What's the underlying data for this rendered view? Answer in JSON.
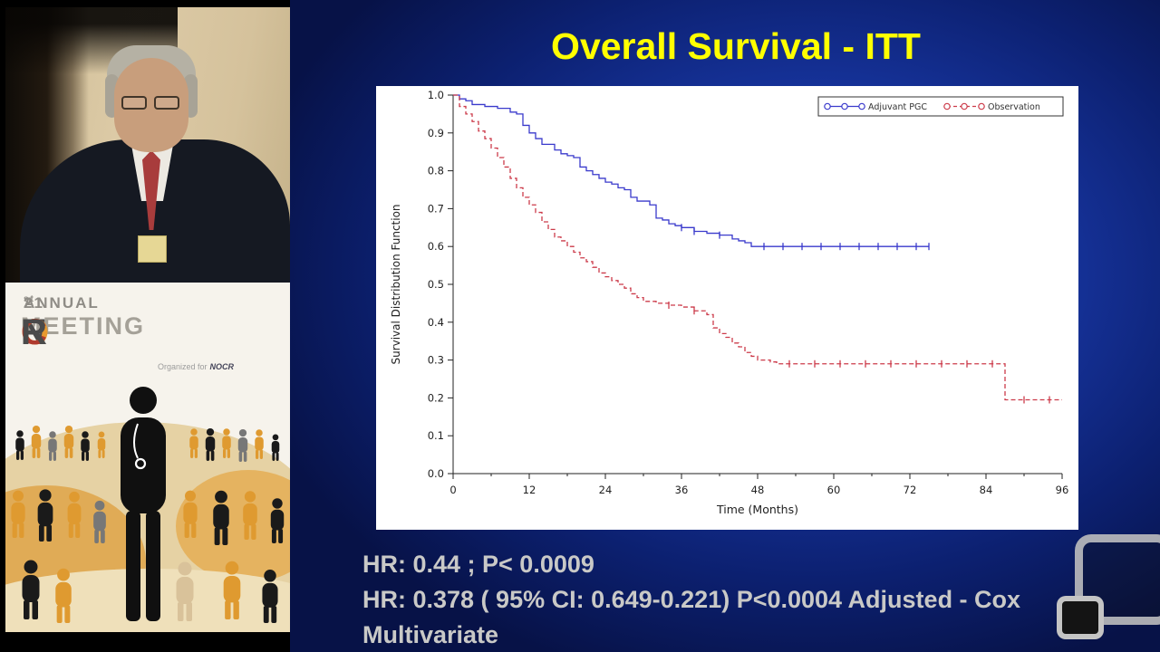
{
  "slide": {
    "title": "Overall Survival - ITT",
    "title_color": "#ffff00",
    "stats_line1": "HR: 0.44 ; P< 0.0009",
    "stats_line2": "HR: 0.378 ( 95% CI: 0.649-0.221)  P<0.0004 Adjusted - Cox Multivariate",
    "stats_color": "#c9c9c7"
  },
  "branding": {
    "annual_number": "21",
    "annual_sup": "st",
    "annual_word": " ANNUAL",
    "logo": [
      {
        "char": "N",
        "color": "#4a4a4a"
      },
      {
        "char": "O",
        "color": "#e8992f"
      },
      {
        "char": "C",
        "color": "#b03a2e"
      },
      {
        "char": "R",
        "color": "#4a4a4a"
      }
    ],
    "meeting_word": "MEETING",
    "organized_for": "Organized for",
    "organizer_logo": "NOCR"
  },
  "chart_data": {
    "type": "line",
    "subtype": "kaplan-meier-step",
    "title": "",
    "xlabel": "Time (Months)",
    "ylabel": "Survival Distribution Function",
    "xlim": [
      0,
      96
    ],
    "ylim": [
      0.0,
      1.0
    ],
    "xticks": [
      0,
      12,
      24,
      36,
      48,
      60,
      72,
      84,
      96
    ],
    "yticks": [
      0.0,
      0.1,
      0.2,
      0.3,
      0.4,
      0.5,
      0.6,
      0.7,
      0.8,
      0.9,
      1.0
    ],
    "grid": false,
    "legend_position": "top-right-inside",
    "series": [
      {
        "name": "Adjuvant PGC",
        "color": "#3a3acc",
        "line_style": "solid",
        "points": [
          [
            0,
            1.0
          ],
          [
            1,
            0.99
          ],
          [
            2,
            0.985
          ],
          [
            3,
            0.975
          ],
          [
            5,
            0.97
          ],
          [
            7,
            0.965
          ],
          [
            9,
            0.955
          ],
          [
            10,
            0.95
          ],
          [
            11,
            0.92
          ],
          [
            12,
            0.9
          ],
          [
            13,
            0.885
          ],
          [
            14,
            0.87
          ],
          [
            16,
            0.855
          ],
          [
            17,
            0.845
          ],
          [
            18,
            0.84
          ],
          [
            19,
            0.835
          ],
          [
            20,
            0.81
          ],
          [
            21,
            0.8
          ],
          [
            22,
            0.79
          ],
          [
            23,
            0.78
          ],
          [
            24,
            0.77
          ],
          [
            25,
            0.765
          ],
          [
            26,
            0.755
          ],
          [
            27,
            0.75
          ],
          [
            28,
            0.73
          ],
          [
            29,
            0.72
          ],
          [
            31,
            0.71
          ],
          [
            32,
            0.675
          ],
          [
            33,
            0.67
          ],
          [
            34,
            0.66
          ],
          [
            35,
            0.655
          ],
          [
            36,
            0.65
          ],
          [
            38,
            0.64
          ],
          [
            40,
            0.635
          ],
          [
            42,
            0.63
          ],
          [
            44,
            0.62
          ],
          [
            45,
            0.615
          ],
          [
            46,
            0.61
          ],
          [
            47,
            0.6
          ],
          [
            75,
            0.6
          ]
        ]
      },
      {
        "name": "Observation",
        "color": "#cc3b4a",
        "line_style": "dashed",
        "points": [
          [
            0,
            1.0
          ],
          [
            1,
            0.97
          ],
          [
            2,
            0.95
          ],
          [
            3,
            0.93
          ],
          [
            4,
            0.905
          ],
          [
            5,
            0.885
          ],
          [
            6,
            0.86
          ],
          [
            7,
            0.835
          ],
          [
            8,
            0.81
          ],
          [
            9,
            0.78
          ],
          [
            10,
            0.755
          ],
          [
            11,
            0.73
          ],
          [
            12,
            0.71
          ],
          [
            13,
            0.69
          ],
          [
            14,
            0.665
          ],
          [
            15,
            0.645
          ],
          [
            16,
            0.625
          ],
          [
            17,
            0.615
          ],
          [
            18,
            0.6
          ],
          [
            19,
            0.585
          ],
          [
            20,
            0.57
          ],
          [
            21,
            0.56
          ],
          [
            22,
            0.545
          ],
          [
            23,
            0.53
          ],
          [
            24,
            0.52
          ],
          [
            25,
            0.51
          ],
          [
            26,
            0.5
          ],
          [
            27,
            0.49
          ],
          [
            28,
            0.475
          ],
          [
            29,
            0.465
          ],
          [
            30,
            0.455
          ],
          [
            32,
            0.45
          ],
          [
            34,
            0.445
          ],
          [
            36,
            0.44
          ],
          [
            38,
            0.43
          ],
          [
            40,
            0.42
          ],
          [
            41,
            0.385
          ],
          [
            42,
            0.37
          ],
          [
            43,
            0.36
          ],
          [
            44,
            0.345
          ],
          [
            45,
            0.335
          ],
          [
            46,
            0.32
          ],
          [
            47,
            0.31
          ],
          [
            48,
            0.3
          ],
          [
            50,
            0.295
          ],
          [
            51,
            0.29
          ],
          [
            86,
            0.29
          ],
          [
            87,
            0.195
          ],
          [
            96,
            0.195
          ]
        ]
      }
    ],
    "censor_marks": [
      {
        "series": "Adjuvant PGC",
        "points": [
          [
            36,
            0.65
          ],
          [
            38,
            0.64
          ],
          [
            42,
            0.63
          ],
          [
            49,
            0.6
          ],
          [
            52,
            0.6
          ],
          [
            55,
            0.6
          ],
          [
            58,
            0.6
          ],
          [
            61,
            0.6
          ],
          [
            64,
            0.6
          ],
          [
            67,
            0.6
          ],
          [
            70,
            0.6
          ],
          [
            73,
            0.6
          ],
          [
            75,
            0.6
          ]
        ]
      },
      {
        "series": "Observation",
        "points": [
          [
            34,
            0.445
          ],
          [
            38,
            0.43
          ],
          [
            53,
            0.29
          ],
          [
            57,
            0.29
          ],
          [
            61,
            0.29
          ],
          [
            65,
            0.29
          ],
          [
            69,
            0.29
          ],
          [
            73,
            0.29
          ],
          [
            77,
            0.29
          ],
          [
            81,
            0.29
          ],
          [
            85,
            0.29
          ],
          [
            90,
            0.195
          ],
          [
            94,
            0.195
          ]
        ]
      }
    ]
  },
  "colors": {
    "slide_bg_inner": "#2247c2",
    "slide_bg_outer": "#071247",
    "chart_bg": "#ffffff"
  },
  "illustration": {
    "orange": "#df9a30",
    "black": "#1a1a1a",
    "gray": "#777777",
    "tan": "#e6d2a4",
    "light_figure": "#d9c29a",
    "panel_bg": "#f6f3ec"
  }
}
